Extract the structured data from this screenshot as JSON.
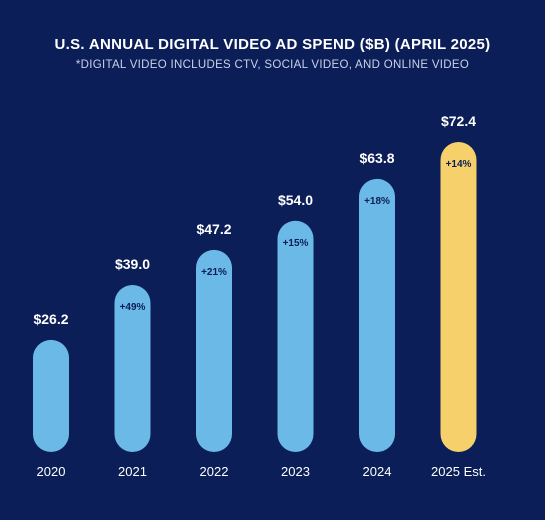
{
  "chart_data": {
    "type": "bar",
    "title": "U.S. ANNUAL DIGITAL VIDEO AD SPEND ($B) (APRIL 2025)",
    "subtitle": "*DIGITAL VIDEO INCLUDES CTV, SOCIAL VIDEO, AND ONLINE VIDEO",
    "categories": [
      "2020",
      "2021",
      "2022",
      "2023",
      "2024",
      "2025 Est."
    ],
    "values": [
      26.2,
      39.0,
      47.2,
      54.0,
      63.8,
      72.4
    ],
    "value_labels": [
      "$26.2",
      "$39.0",
      "$47.2",
      "$54.0",
      "$63.8",
      "$72.4"
    ],
    "growth_labels": [
      "",
      "+49%",
      "+21%",
      "+15%",
      "+18%",
      "+14%"
    ],
    "highlight_index": 5,
    "colors": {
      "background": "#0b1e57",
      "bar": "#6bb9e6",
      "highlight": "#f5d06b",
      "text": "#ffffff",
      "growth_text": "#0b1e57"
    },
    "grid": false,
    "legend": "none"
  }
}
